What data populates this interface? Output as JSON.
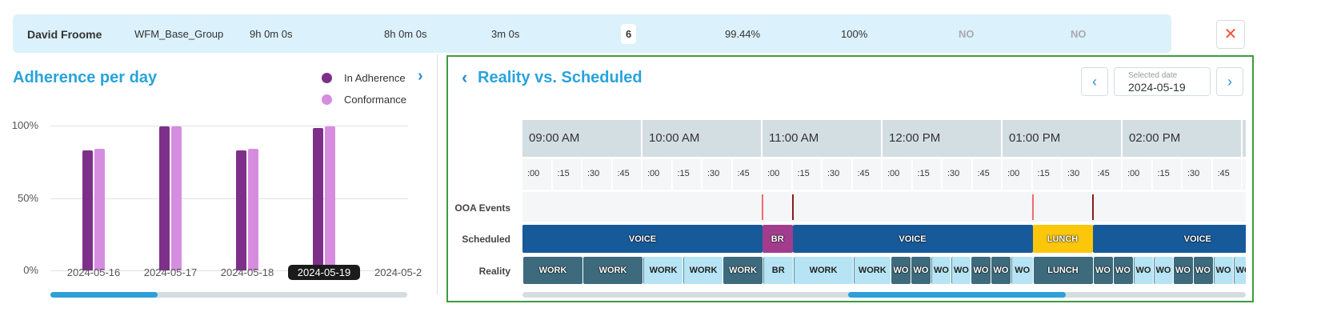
{
  "summary": {
    "agent": "David Froome",
    "group": "WFM_Base_Group",
    "scheduled_time": "9h 0m 0s",
    "worked_time": "8h 0m 0s",
    "ooa_time": "3m 0s",
    "count": "6",
    "adherence": "99.44%",
    "conformance": "100%",
    "flag1": "NO",
    "flag2": "NO",
    "close_icon": "close-icon"
  },
  "left": {
    "title": "Adherence per day",
    "next_icon": "chevron-right-icon",
    "scroll_fraction": 0.3
  },
  "chart_data": {
    "type": "bar",
    "categories": [
      "2024-05-16",
      "2024-05-17",
      "2024-05-18",
      "2024-05-19",
      "2024-05-2"
    ],
    "selected": "2024-05-19",
    "series": [
      {
        "name": "In Adherence",
        "color": "#7e2f8a",
        "values": [
          83,
          99.5,
          83,
          98.5,
          null
        ]
      },
      {
        "name": "Conformance",
        "color": "#d68de0",
        "values": [
          84,
          99.5,
          84,
          99.5,
          null
        ]
      }
    ],
    "yticks": [
      "100%",
      "50%",
      "0%"
    ],
    "ylim": [
      0,
      100
    ],
    "grid": true,
    "legend": "top-right"
  },
  "right": {
    "title": "Reality vs. Scheduled",
    "back_icon": "chevron-left-icon",
    "date_label": "Selected date",
    "date": "2024-05-19",
    "scroll_fraction": 0.3,
    "hours": [
      "09:00 AM",
      "10:00 AM",
      "11:00 AM",
      "12:00 PM",
      "01:00 PM",
      "02:00 PM",
      ""
    ],
    "quarters": [
      ":00",
      ":15",
      ":30",
      ":45"
    ],
    "rows": {
      "ooa": "OOA Events",
      "scheduled": "Scheduled",
      "reality": "Reality"
    },
    "ooa_events": [
      {
        "time": "11:00",
        "color": "#f26b6b"
      },
      {
        "time": "11:15",
        "color": "#8b1a1a"
      },
      {
        "time": "13:15",
        "color": "#f26b6b"
      },
      {
        "time": "13:45",
        "color": "#8b1a1a"
      }
    ],
    "scheduled": [
      {
        "label": "VOICE",
        "start": "09:00",
        "end": "11:00",
        "color": "#175a9a"
      },
      {
        "label": "BR",
        "start": "11:00",
        "end": "11:15",
        "color": "#a23d8e"
      },
      {
        "label": "VOICE",
        "start": "11:15",
        "end": "13:15",
        "color": "#175a9a"
      },
      {
        "label": "LUNCH",
        "start": "13:15",
        "end": "13:45",
        "color": "#fcc70a"
      },
      {
        "label": "VOICE",
        "start": "13:45",
        "end": "15:30",
        "color": "#175a9a"
      }
    ],
    "reality": [
      {
        "label": "WORK",
        "start": "09:00",
        "end": "09:30",
        "state": "dark"
      },
      {
        "label": "WORK",
        "start": "09:30",
        "end": "10:00",
        "state": "dark"
      },
      {
        "label": "WORK",
        "start": "10:00",
        "end": "10:20",
        "state": "light"
      },
      {
        "label": "WORK",
        "start": "10:20",
        "end": "10:40",
        "state": "light"
      },
      {
        "label": "WORK",
        "start": "10:40",
        "end": "11:00",
        "state": "dark"
      },
      {
        "label": "BR",
        "start": "11:00",
        "end": "11:15",
        "state": "light"
      },
      {
        "label": "WORK",
        "start": "11:15",
        "end": "11:45",
        "state": "light"
      },
      {
        "label": "WORK",
        "start": "11:45",
        "end": "12:04",
        "state": "light"
      },
      {
        "label": "WO",
        "start": "12:04",
        "end": "12:14",
        "state": "dark"
      },
      {
        "label": "WO",
        "start": "12:14",
        "end": "12:24",
        "state": "dark"
      },
      {
        "label": "WO",
        "start": "12:24",
        "end": "12:34",
        "state": "light"
      },
      {
        "label": "WO",
        "start": "12:34",
        "end": "12:44",
        "state": "light"
      },
      {
        "label": "WO",
        "start": "12:44",
        "end": "12:54",
        "state": "dark"
      },
      {
        "label": "WO",
        "start": "12:54",
        "end": "13:04",
        "state": "dark"
      },
      {
        "label": "WO",
        "start": "13:04",
        "end": "13:15",
        "state": "light"
      },
      {
        "label": "LUNCH",
        "start": "13:15",
        "end": "13:45",
        "state": "dark"
      },
      {
        "label": "WO",
        "start": "13:45",
        "end": "13:55",
        "state": "dark"
      },
      {
        "label": "WO",
        "start": "13:55",
        "end": "14:05",
        "state": "dark"
      },
      {
        "label": "WO",
        "start": "14:05",
        "end": "14:15",
        "state": "light"
      },
      {
        "label": "WO",
        "start": "14:15",
        "end": "14:25",
        "state": "light"
      },
      {
        "label": "WO",
        "start": "14:25",
        "end": "14:35",
        "state": "dark"
      },
      {
        "label": "WO",
        "start": "14:35",
        "end": "14:45",
        "state": "dark"
      },
      {
        "label": "WO",
        "start": "14:45",
        "end": "14:55",
        "state": "light"
      },
      {
        "label": "WO",
        "start": "14:55",
        "end": "15:05",
        "state": "light"
      }
    ]
  }
}
